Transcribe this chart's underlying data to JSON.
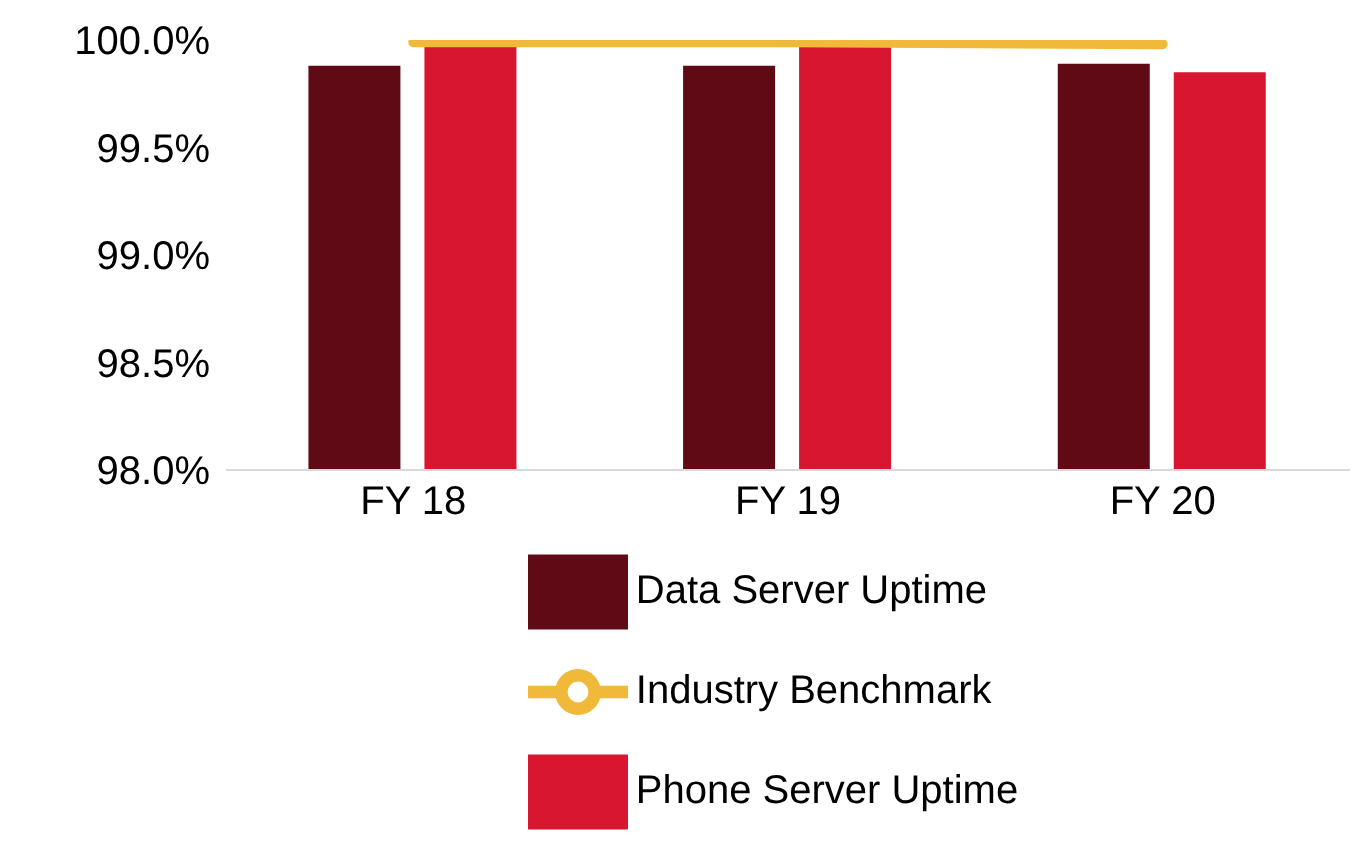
{
  "chart_data": {
    "type": "bar",
    "categories": [
      "FY 18",
      "FY 19",
      "FY 20"
    ],
    "series": [
      {
        "name": "Data Server Uptime",
        "color": "#600a16",
        "values": [
          99.88,
          99.88,
          99.89
        ]
      },
      {
        "name": "Phone Server Uptime",
        "color": "#d91630",
        "values": [
          99.98,
          99.98,
          99.85
        ]
      },
      {
        "name": "Industry Benchmark",
        "type": "line",
        "color": "#f0b93a",
        "values": [
          99.99,
          99.99,
          99.98
        ]
      }
    ],
    "ylim": [
      98,
      100
    ],
    "yticks": [
      {
        "value": 98,
        "label": "98.0%"
      },
      {
        "value": 98.5,
        "label": "98.5%"
      },
      {
        "value": 99,
        "label": "99.0%"
      },
      {
        "value": 99.5,
        "label": "99.5%"
      },
      {
        "value": 100,
        "label": "100.0%"
      }
    ],
    "grid": false,
    "legend": "bottom"
  }
}
